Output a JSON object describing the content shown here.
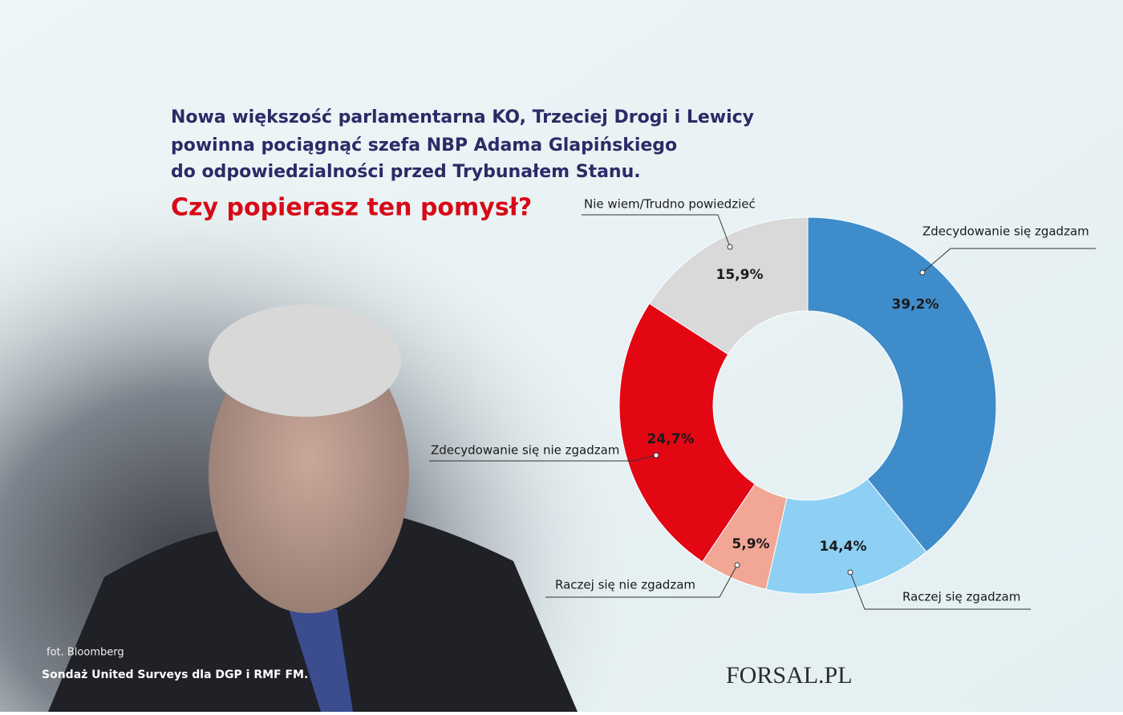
{
  "chart_data": {
    "type": "donut",
    "title_lines": [
      "Nowa większość parlamentarna KO, Trzeciej Drogi i Lewicy",
      "powinna pociągnąć szefa NBP Adama Glapińskiego",
      "do odpowiedzialności przed Trybunałem Stanu."
    ],
    "question": "Czy popierasz ten pomysł?",
    "categories": [
      "Zdecydowanie się zgadzam",
      "Raczej się zgadzam",
      "Raczej się nie zgadzam",
      "Zdecydowanie się nie zgadzam",
      "Nie wiem/Trudno powiedzieć"
    ],
    "values": [
      39.2,
      14.4,
      5.9,
      24.7,
      15.9
    ],
    "value_labels": [
      "39,2%",
      "14,4%",
      "5,9%",
      "24,7%",
      "15,9%"
    ],
    "colors": [
      "#3f8ccb",
      "#8dd0f3",
      "#f2a696",
      "#e30613",
      "#d9d9d9"
    ],
    "photo_credit": "fot. Bloomberg",
    "source": "Sondaż United Surveys dla DGP i RMF FM.",
    "logo": "FORSAL.PL"
  }
}
